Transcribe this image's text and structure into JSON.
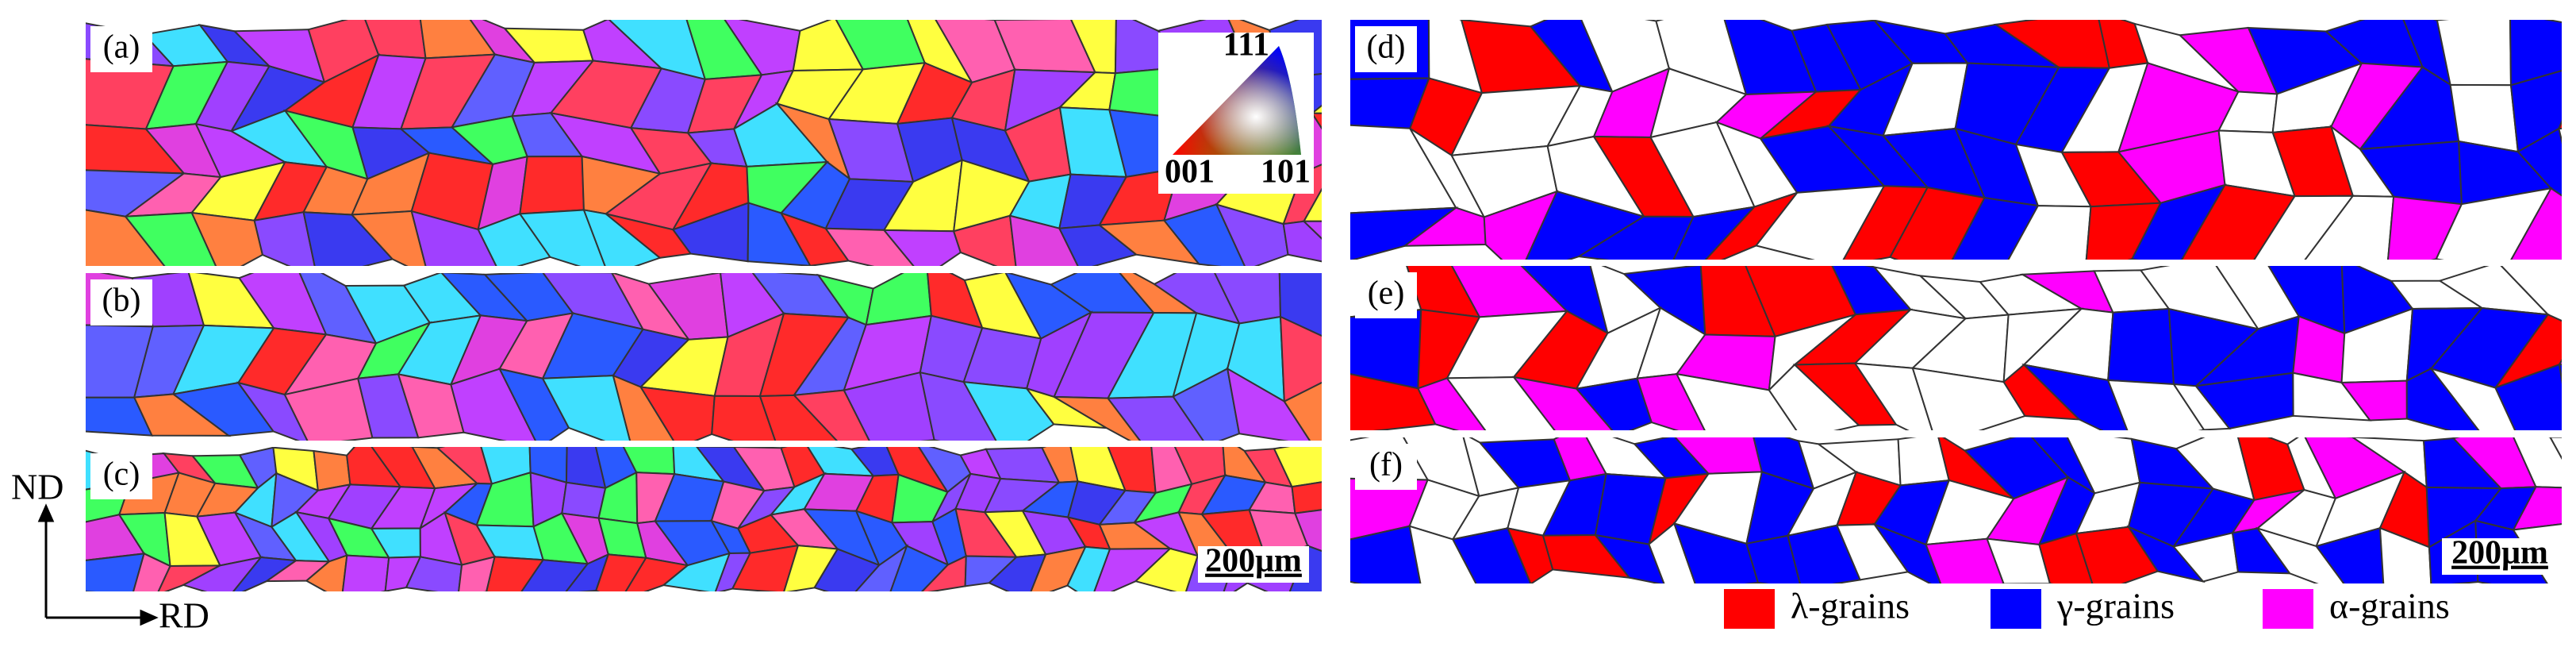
{
  "panels": [
    {
      "label": "(a)"
    },
    {
      "label": "(b)"
    },
    {
      "label": "(c)"
    },
    {
      "label": "(d)"
    },
    {
      "label": "(e)"
    },
    {
      "label": "(f)"
    }
  ],
  "ipf_key": {
    "corners": [
      "111",
      "001",
      "101"
    ]
  },
  "scale_bars": [
    "200μm",
    "200μm"
  ],
  "axes": {
    "vertical": "ND",
    "horizontal": "RD"
  },
  "legend": [
    {
      "label": "λ-grains",
      "color": "#ff0000"
    },
    {
      "label": "γ-grains",
      "color": "#0000ff"
    },
    {
      "label": "α-grains",
      "color": "#ff00ff"
    }
  ]
}
